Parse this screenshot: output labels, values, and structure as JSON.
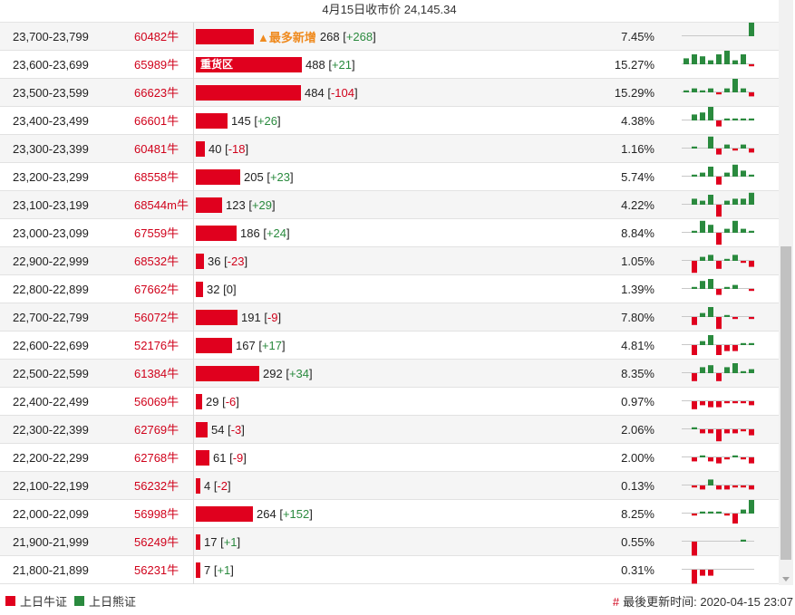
{
  "header": {
    "title": "4月15日收市价 24,145.34"
  },
  "colors": {
    "bull": "#e0001e",
    "bear": "#2a8a3e",
    "highlight": "#ef8a1e"
  },
  "rows": [
    {
      "range": "23,700-23,799",
      "count": "60482牛",
      "bar_value": 268,
      "bar_label": "",
      "tag": "▲最多新增",
      "val": "268",
      "change": "+268",
      "pct": "7.45%",
      "spark": [
        0,
        0,
        0,
        0,
        0,
        0,
        0,
        0,
        8
      ]
    },
    {
      "range": "23,600-23,699",
      "count": "65989牛",
      "bar_value": 488,
      "bar_label": "重货区",
      "tag": "",
      "val": "488",
      "change": "+21",
      "pct": "15.27%",
      "spark": [
        3,
        5,
        4,
        2,
        5,
        7,
        2,
        5,
        -1
      ]
    },
    {
      "range": "23,500-23,599",
      "count": "66623牛",
      "bar_value": 484,
      "bar_label": "",
      "tag": "",
      "val": "484",
      "change": "-104",
      "pct": "15.29%",
      "spark": [
        1,
        2,
        1,
        2,
        -1,
        2,
        7,
        2,
        -2
      ]
    },
    {
      "range": "23,400-23,499",
      "count": "66601牛",
      "bar_value": 145,
      "bar_label": "",
      "tag": "",
      "val": "145",
      "change": "+26",
      "pct": "4.38%",
      "spark": [
        0,
        3,
        4,
        7,
        -3,
        1,
        1,
        1,
        1
      ]
    },
    {
      "range": "23,300-23,399",
      "count": "60481牛",
      "bar_value": 40,
      "bar_label": "",
      "tag": "",
      "val": "40",
      "change": "-18",
      "pct": "1.16%",
      "spark": [
        0,
        1,
        0,
        6,
        -3,
        2,
        -1,
        2,
        -2
      ]
    },
    {
      "range": "23,200-23,299",
      "count": "68558牛",
      "bar_value": 205,
      "bar_label": "",
      "tag": "",
      "val": "205",
      "change": "+23",
      "pct": "5.74%",
      "spark": [
        0,
        1,
        2,
        5,
        -4,
        2,
        6,
        3,
        1
      ]
    },
    {
      "range": "23,100-23,199",
      "count": "68544m牛",
      "bar_value": 123,
      "bar_label": "",
      "tag": "",
      "val": "123",
      "change": "+29",
      "pct": "4.22%",
      "spark": [
        0,
        3,
        2,
        5,
        -6,
        2,
        3,
        3,
        6
      ]
    },
    {
      "range": "23,000-23,099",
      "count": "67559牛",
      "bar_value": 186,
      "bar_label": "",
      "tag": "",
      "val": "186",
      "change": "+24",
      "pct": "8.84%",
      "spark": [
        0,
        1,
        6,
        4,
        -6,
        2,
        6,
        2,
        1
      ]
    },
    {
      "range": "22,900-22,999",
      "count": "68532牛",
      "bar_value": 36,
      "bar_label": "",
      "tag": "",
      "val": "36",
      "change": "-23",
      "pct": "1.05%",
      "spark": [
        0,
        -6,
        2,
        3,
        -4,
        1,
        3,
        -1,
        -3
      ]
    },
    {
      "range": "22,800-22,899",
      "count": "67662牛",
      "bar_value": 32,
      "bar_label": "",
      "tag": "",
      "val": "32",
      "change": "0",
      "pct": "1.39%",
      "spark": [
        0,
        1,
        4,
        5,
        -3,
        1,
        2,
        0,
        -1
      ]
    },
    {
      "range": "22,700-22,799",
      "count": "56072牛",
      "bar_value": 191,
      "bar_label": "",
      "tag": "",
      "val": "191",
      "change": "-9",
      "pct": "7.80%",
      "spark": [
        0,
        -4,
        2,
        5,
        -6,
        1,
        -1,
        0,
        -1
      ]
    },
    {
      "range": "22,600-22,699",
      "count": "52176牛",
      "bar_value": 167,
      "bar_label": "",
      "tag": "",
      "val": "167",
      "change": "+17",
      "pct": "4.81%",
      "spark": [
        0,
        -5,
        2,
        5,
        -5,
        -3,
        -3,
        1,
        1
      ]
    },
    {
      "range": "22,500-22,599",
      "count": "61384牛",
      "bar_value": 292,
      "bar_label": "",
      "tag": "",
      "val": "292",
      "change": "+34",
      "pct": "8.35%",
      "spark": [
        0,
        -4,
        3,
        4,
        -4,
        3,
        5,
        1,
        2
      ]
    },
    {
      "range": "22,400-22,499",
      "count": "56069牛",
      "bar_value": 29,
      "bar_label": "",
      "tag": "",
      "val": "29",
      "change": "-6",
      "pct": "0.97%",
      "spark": [
        0,
        -4,
        -2,
        -3,
        -3,
        -1,
        -1,
        -1,
        -2
      ]
    },
    {
      "range": "22,300-22,399",
      "count": "62769牛",
      "bar_value": 54,
      "bar_label": "",
      "tag": "",
      "val": "54",
      "change": "-3",
      "pct": "2.06%",
      "spark": [
        0,
        1,
        -2,
        -2,
        -6,
        -2,
        -2,
        -1,
        -3
      ]
    },
    {
      "range": "22,200-22,299",
      "count": "62768牛",
      "bar_value": 61,
      "bar_label": "",
      "tag": "",
      "val": "61",
      "change": "-9",
      "pct": "2.00%",
      "spark": [
        0,
        -2,
        1,
        -2,
        -3,
        -1,
        1,
        -1,
        -3
      ]
    },
    {
      "range": "22,100-22,199",
      "count": "56232牛",
      "bar_value": 4,
      "bar_label": "",
      "tag": "",
      "val": "4",
      "change": "-2",
      "pct": "0.13%",
      "spark": [
        0,
        -1,
        -2,
        3,
        -2,
        -2,
        -1,
        -1,
        -2
      ]
    },
    {
      "range": "22,000-22,099",
      "count": "56998牛",
      "bar_value": 264,
      "bar_label": "",
      "tag": "",
      "val": "264",
      "change": "+152",
      "pct": "8.25%",
      "spark": [
        0,
        -1,
        1,
        1,
        1,
        -1,
        -5,
        2,
        7
      ]
    },
    {
      "range": "21,900-21,999",
      "count": "56249牛",
      "bar_value": 17,
      "bar_label": "",
      "tag": "",
      "val": "17",
      "change": "+1",
      "pct": "0.55%",
      "spark": [
        0,
        -7,
        0,
        0,
        0,
        0,
        0,
        1,
        0
      ]
    },
    {
      "range": "21,800-21,899",
      "count": "56231牛",
      "bar_value": 7,
      "bar_label": "",
      "tag": "",
      "val": "7",
      "change": "+1",
      "pct": "0.31%",
      "spark": [
        0,
        -7,
        -3,
        -3,
        0,
        0,
        0,
        0,
        0
      ]
    }
  ],
  "legend": {
    "bull_label": "上日牛证",
    "bear_label": "上日熊证"
  },
  "footer": {
    "updated_mark": "#",
    "updated_text": "最後更新时间: 2020-04-15 23:07"
  }
}
